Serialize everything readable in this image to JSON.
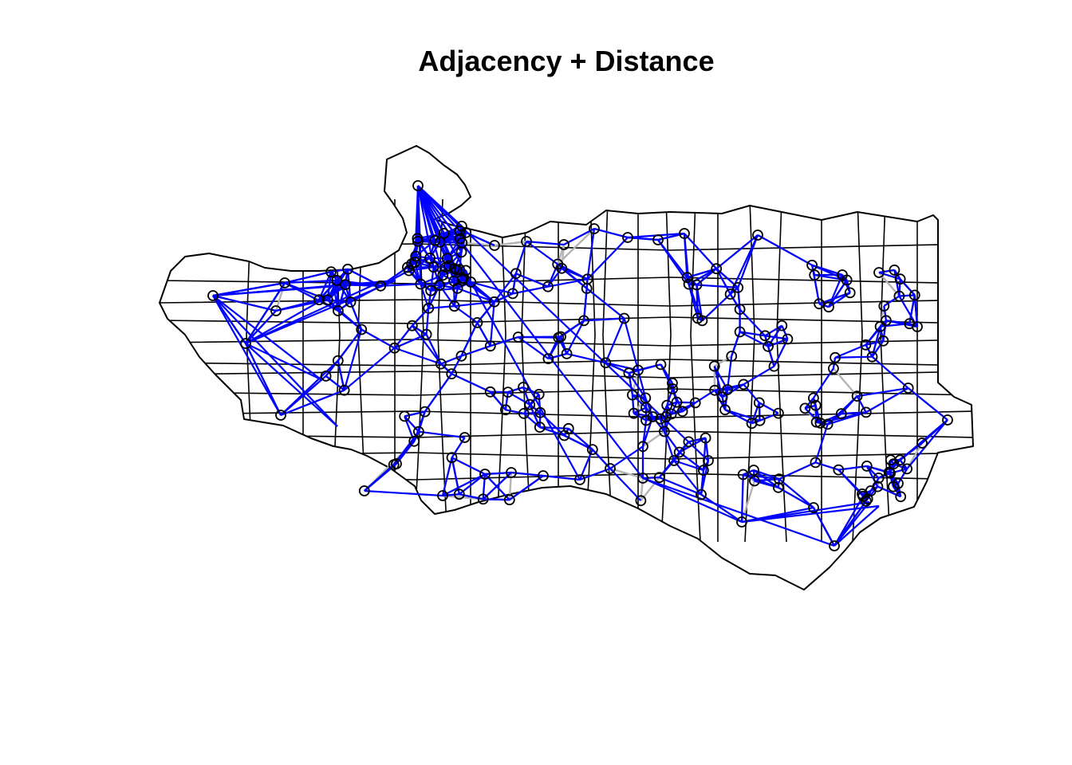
{
  "title": "Adjacency + Distance",
  "colors": {
    "background": "#ffffff",
    "boundary": "#000000",
    "adjacency_edges": "#b3b3b3",
    "distance_edges": "#0000ff",
    "nodes": "#000000"
  },
  "legend": "none"
}
